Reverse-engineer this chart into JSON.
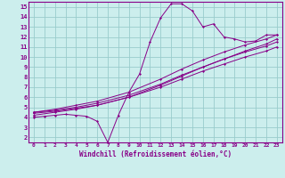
{
  "bg_color": "#cceeed",
  "line_color": "#880088",
  "grid_color": "#99cccc",
  "xlabel": "Windchill (Refroidissement éolien,°C)",
  "xlim": [
    -0.5,
    23.5
  ],
  "ylim": [
    1.5,
    15.5
  ],
  "xticks": [
    0,
    1,
    2,
    3,
    4,
    5,
    6,
    7,
    8,
    9,
    10,
    11,
    12,
    13,
    14,
    15,
    16,
    17,
    18,
    19,
    20,
    21,
    22,
    23
  ],
  "yticks": [
    2,
    3,
    4,
    5,
    6,
    7,
    8,
    9,
    10,
    11,
    12,
    13,
    14,
    15
  ],
  "main_line_x": [
    0,
    1,
    2,
    3,
    4,
    5,
    6,
    7,
    8,
    9,
    10,
    11,
    12,
    13,
    14,
    15,
    16,
    17,
    18,
    19,
    20,
    21,
    22,
    23
  ],
  "main_line_y": [
    4.0,
    4.1,
    4.2,
    4.3,
    4.2,
    4.1,
    3.6,
    1.5,
    4.2,
    6.5,
    8.3,
    11.5,
    13.9,
    15.3,
    15.3,
    14.6,
    13.0,
    13.3,
    12.0,
    11.8,
    11.5,
    11.6,
    12.2,
    12.2
  ],
  "ref_lines": [
    {
      "x": [
        0,
        2,
        4,
        6,
        9,
        12,
        14,
        16,
        18,
        20,
        22,
        23
      ],
      "y": [
        4.5,
        4.8,
        5.2,
        5.6,
        6.5,
        7.8,
        8.8,
        9.7,
        10.5,
        11.2,
        11.8,
        12.2
      ]
    },
    {
      "x": [
        0,
        2,
        4,
        6,
        9,
        12,
        14,
        16,
        18,
        20,
        22,
        23
      ],
      "y": [
        4.5,
        4.7,
        5.0,
        5.4,
        6.2,
        7.3,
        8.2,
        9.0,
        9.8,
        10.5,
        11.1,
        11.5
      ]
    },
    {
      "x": [
        0,
        2,
        4,
        6,
        9,
        12,
        14,
        16,
        18,
        20,
        22,
        23
      ],
      "y": [
        4.4,
        4.6,
        4.9,
        5.2,
        6.0,
        7.0,
        7.8,
        8.6,
        9.3,
        10.0,
        10.6,
        11.0
      ]
    },
    {
      "x": [
        0,
        2,
        4,
        6,
        9,
        12,
        14,
        16,
        18,
        20,
        22,
        23
      ],
      "y": [
        4.2,
        4.5,
        4.8,
        5.2,
        6.0,
        7.2,
        8.1,
        9.0,
        9.8,
        10.6,
        11.3,
        11.8
      ]
    }
  ]
}
